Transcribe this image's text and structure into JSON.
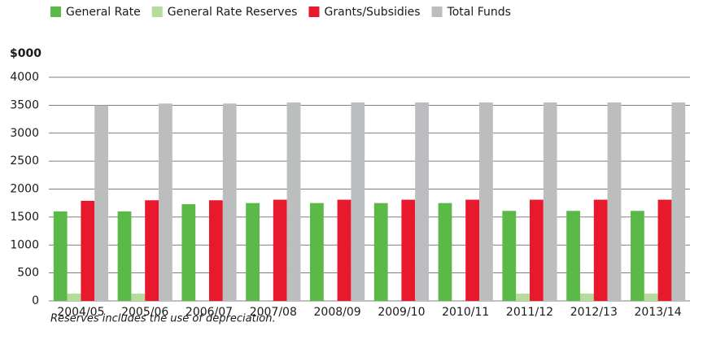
{
  "chart_data": {
    "type": "bar",
    "y_label": "$000",
    "footnote": "Reserves includes the use of depreciation.",
    "categories": [
      "2004/05",
      "2005/06",
      "2006/07",
      "2007/08",
      "2008/09",
      "2009/10",
      "2010/11",
      "2011/12",
      "2012/13",
      "2013/14"
    ],
    "series": [
      {
        "name": "General Rate",
        "color": "#5bb947",
        "values": [
          1600,
          1600,
          1730,
          1750,
          1750,
          1750,
          1750,
          1610,
          1610,
          1610
        ]
      },
      {
        "name": "General Rate Reserves",
        "color": "#b5dc9a",
        "values": [
          130,
          130,
          0,
          0,
          0,
          0,
          0,
          130,
          130,
          130
        ]
      },
      {
        "name": "Grants/Subsidies",
        "color": "#e8192c",
        "values": [
          1790,
          1800,
          1800,
          1810,
          1810,
          1810,
          1810,
          1810,
          1810,
          1810
        ]
      },
      {
        "name": "Total Funds",
        "color": "#bcbdbf",
        "values": [
          3500,
          3530,
          3530,
          3550,
          3550,
          3550,
          3550,
          3550,
          3550,
          3550
        ]
      }
    ],
    "ylim": [
      0,
      4000
    ],
    "yticks": [
      0,
      500,
      1000,
      1500,
      2000,
      2500,
      3000,
      3500,
      4000
    ],
    "grid": true,
    "legend": "top-left"
  }
}
